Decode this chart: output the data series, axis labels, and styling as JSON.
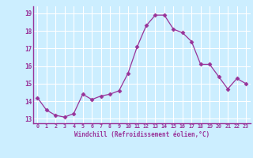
{
  "x": [
    0,
    1,
    2,
    3,
    4,
    5,
    6,
    7,
    8,
    9,
    10,
    11,
    12,
    13,
    14,
    15,
    16,
    17,
    18,
    19,
    20,
    21,
    22,
    23
  ],
  "y": [
    14.2,
    13.5,
    13.2,
    13.1,
    13.3,
    14.4,
    14.1,
    14.3,
    14.4,
    14.6,
    15.6,
    17.1,
    18.3,
    18.9,
    18.9,
    18.1,
    17.9,
    17.4,
    16.1,
    16.1,
    15.4,
    14.7,
    15.3,
    15.0
  ],
  "line_color": "#993399",
  "marker": "D",
  "marker_size": 2.5,
  "bg_color": "#cceeff",
  "grid_color": "#ffffff",
  "xlabel": "Windchill (Refroidissement éolien,°C)",
  "xlabel_color": "#993399",
  "tick_color": "#993399",
  "ylim": [
    12.75,
    19.4
  ],
  "xlim": [
    -0.5,
    23.5
  ],
  "yticks": [
    13,
    14,
    15,
    16,
    17,
    18,
    19
  ],
  "xtick_labels": [
    "0",
    "1",
    "2",
    "3",
    "4",
    "5",
    "6",
    "7",
    "8",
    "9",
    "10",
    "11",
    "12",
    "13",
    "14",
    "15",
    "16",
    "17",
    "18",
    "19",
    "20",
    "21",
    "22",
    "23"
  ],
  "font_family": "monospace"
}
